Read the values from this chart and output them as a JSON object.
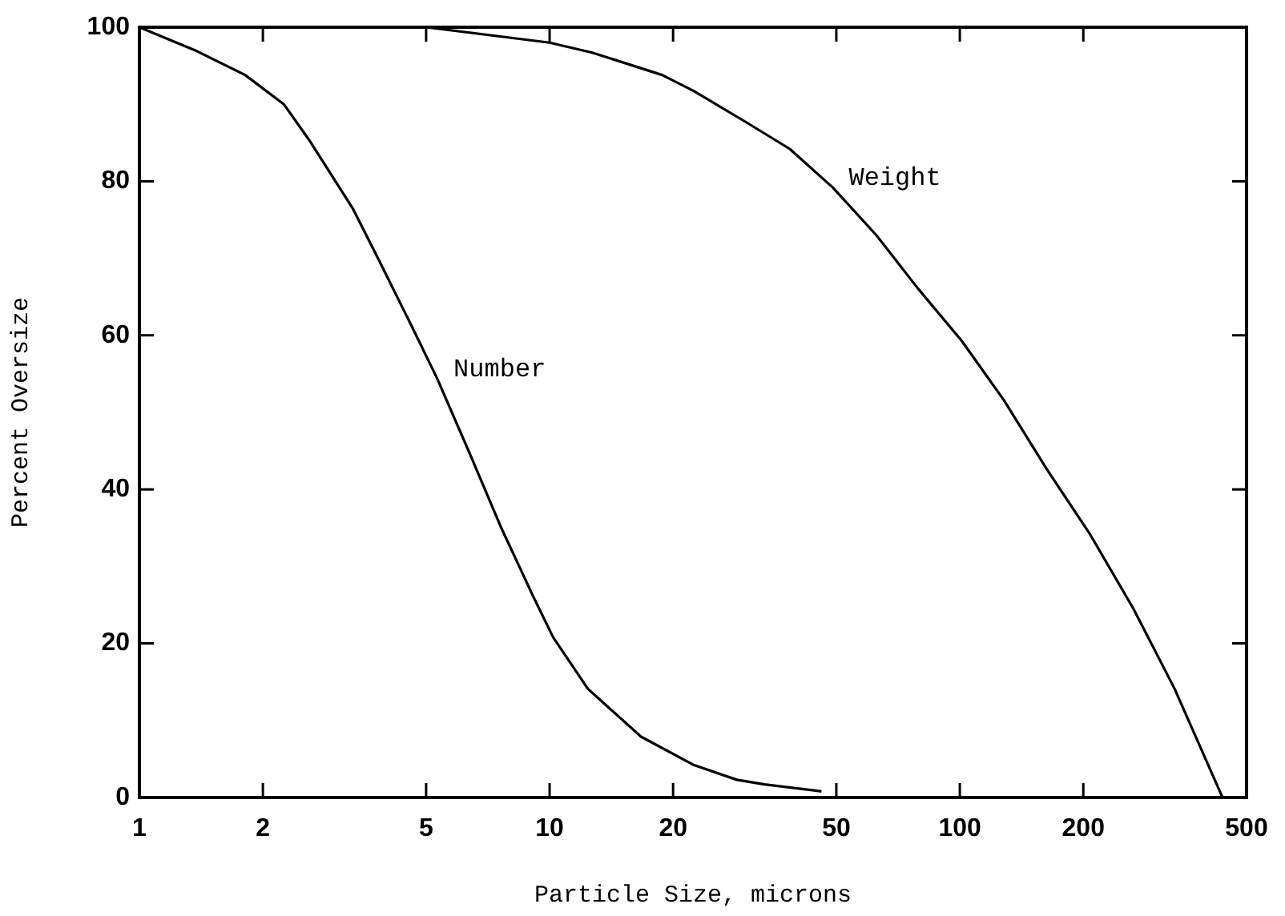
{
  "chart_data": {
    "type": "line",
    "xlabel": "Particle Size, microns",
    "ylabel": "Percent Oversize",
    "log": "x",
    "xlim": [
      1,
      500
    ],
    "xticks": [
      1,
      2,
      5,
      10,
      20,
      50,
      100,
      200,
      500
    ],
    "ylim": [
      0,
      100
    ],
    "yticks": [
      0,
      20,
      40,
      60,
      80,
      100
    ],
    "grid": false,
    "legend": false,
    "marker": "none",
    "line_style": "solid",
    "series": [
      {
        "name": "Number",
        "color": "#000000",
        "x": [
          1,
          1.38,
          1.81,
          2.25,
          2.59,
          3.31,
          3.85,
          4.6,
          5.33,
          6.38,
          7.64,
          9.14,
          10.2,
          12.4,
          16.7,
          22.5,
          28.6,
          33.4,
          46
        ],
        "values": [
          100,
          96.9,
          93.8,
          90,
          85.4,
          76.5,
          69.6,
          61.3,
          54.3,
          44.7,
          34.9,
          26,
          20.8,
          14.1,
          7.9,
          4.2,
          2.3,
          1.7,
          0.8
        ]
      },
      {
        "name": "Weight",
        "color": "#000000",
        "x": [
          4,
          5,
          10,
          12.7,
          18.8,
          22.5,
          30.5,
          38.5,
          49,
          62.6,
          79,
          101,
          128,
          163,
          207,
          265,
          334,
          437
        ],
        "values": [
          100,
          100,
          98,
          96.7,
          93.8,
          91.7,
          87.5,
          84.2,
          79.2,
          73,
          66.1,
          59.3,
          51.6,
          42.6,
          34.3,
          24.5,
          14.1,
          0
        ]
      }
    ]
  }
}
